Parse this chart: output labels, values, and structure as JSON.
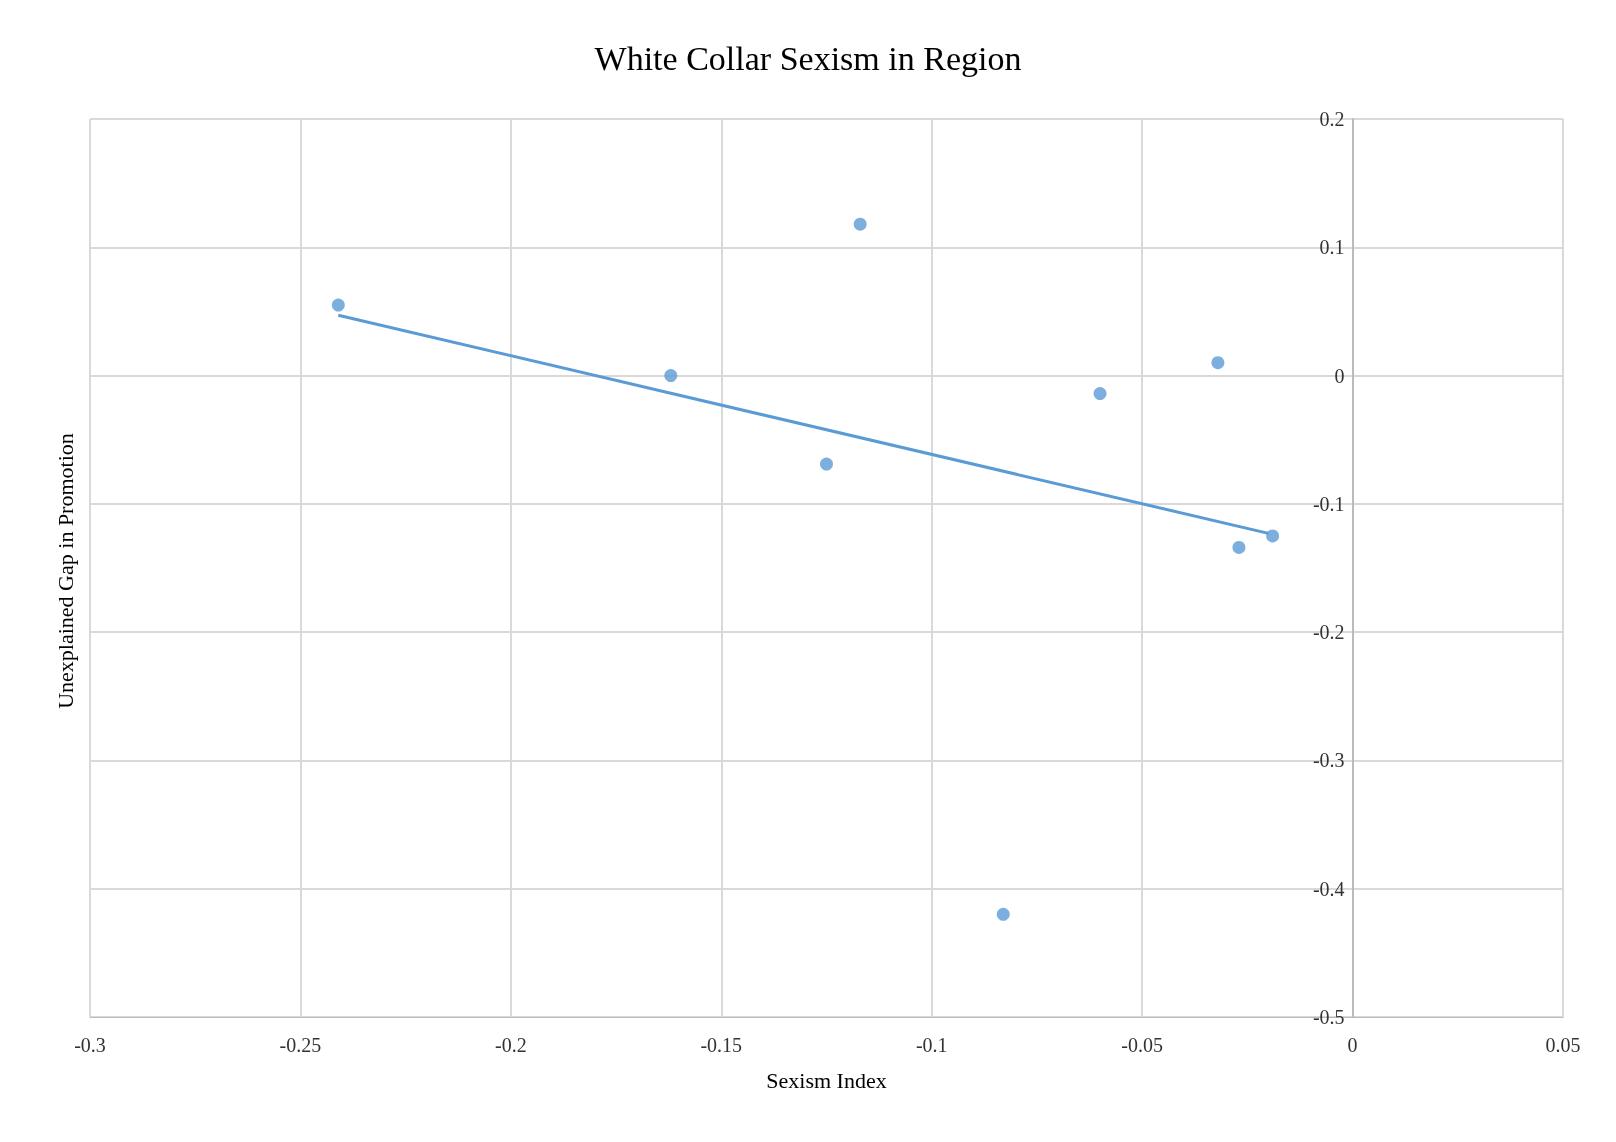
{
  "chart_data": {
    "type": "scatter",
    "title": "White Collar Sexism in Region",
    "xlabel": "Sexism Index",
    "ylabel": "Unexplained Gap in Promotion",
    "xlim": [
      -0.3,
      0.05
    ],
    "xticks": [
      -0.3,
      -0.25,
      -0.2,
      -0.15,
      -0.1,
      -0.05,
      0,
      0.05
    ],
    "ylim": [
      -0.5,
      0.2
    ],
    "yticks": [
      -0.5,
      -0.4,
      -0.3,
      -0.2,
      -0.1,
      0,
      0.1,
      0.2
    ],
    "grid": true,
    "series": [
      {
        "marker": "circle",
        "color": "#5b9bd5",
        "x": [
          -0.241,
          -0.162,
          -0.125,
          -0.117,
          -0.083,
          -0.06,
          -0.032,
          -0.027,
          -0.019
        ],
        "values": [
          0.055,
          0,
          -0.069,
          0.118,
          -0.42,
          -0.014,
          0.01,
          -0.134,
          -0.125
        ]
      },
      {
        "type": "line",
        "color": "#5b9bd5",
        "x": [
          -0.241,
          -0.02
        ],
        "values": [
          0.047,
          -0.123
        ],
        "line_style": "solid"
      }
    ]
  }
}
